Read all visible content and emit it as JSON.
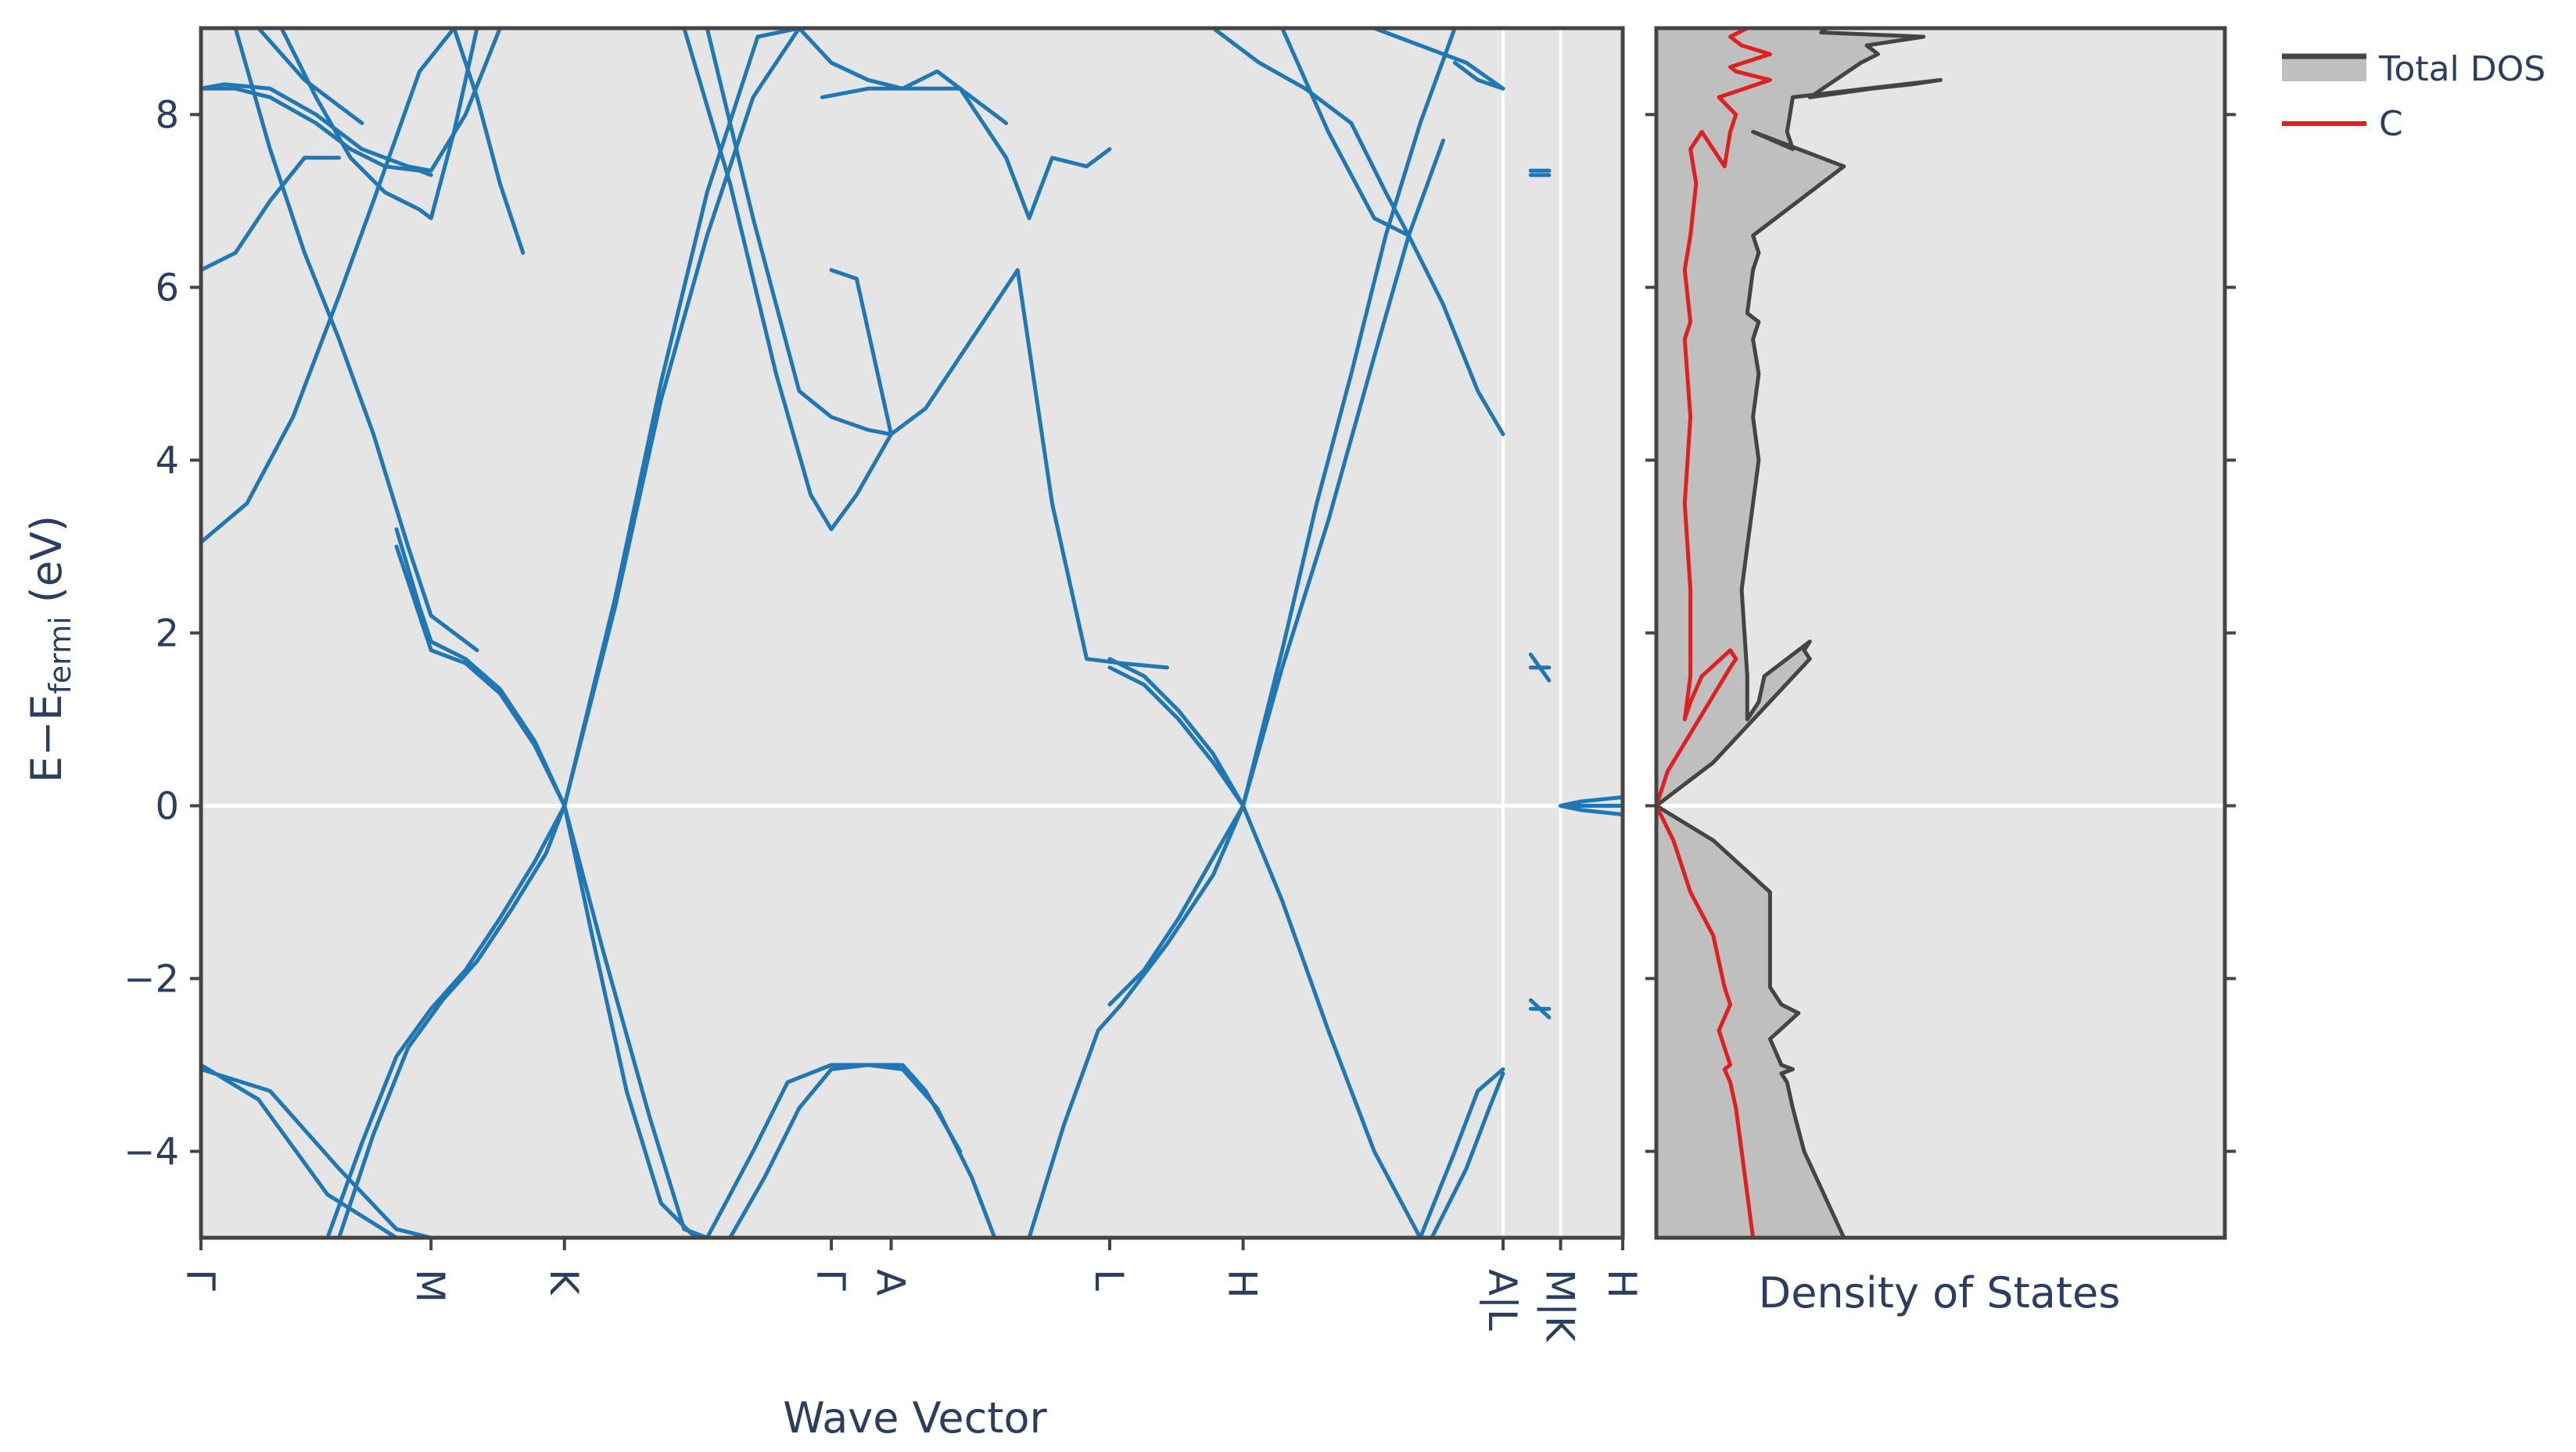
{
  "chart_data": [
    {
      "type": "line",
      "panel": "band-structure",
      "xlabel": "Wave Vector",
      "ylabel_main": "E−E",
      "ylabel_sub": "fermi",
      "ylabel_unit": " (eV)",
      "ylim": [
        -5,
        9
      ],
      "y_ticks": [
        8,
        6,
        4,
        2,
        0,
        -2,
        -4
      ],
      "y_tick_labels": [
        "8",
        "6",
        "4",
        "2",
        "0",
        "−2",
        "−4"
      ],
      "k_points": [
        "Γ",
        "M",
        "K",
        "Γ",
        "A",
        "L",
        "H",
        "A|L",
        "M|K",
        "H"
      ],
      "k_positions": [
        0,
        1,
        1.58,
        2.74,
        3.0,
        3.95,
        4.53,
        5.66,
        5.91,
        6.18
      ],
      "series_color": "#1f77b4",
      "bands": [
        {
          "x": [
            0,
            0.3,
            0.6,
            0.85,
            1.0,
            1.2,
            1.4,
            1.58
          ],
          "y": [
            -3.05,
            -3.3,
            -4.2,
            -4.9,
            -5.0,
            -5.0,
            -5.0,
            -5.0
          ]
        },
        {
          "x": [
            0,
            0.25,
            0.55,
            0.85,
            1.0,
            1.15,
            1.35,
            1.58
          ],
          "y": [
            -3.0,
            -3.4,
            -4.5,
            -5.0,
            -5.0,
            -5.0,
            -5.0,
            -5.0
          ]
        },
        {
          "x": [
            0.55,
            0.7,
            0.85,
            1.0,
            1.15,
            1.3,
            1.45,
            1.58
          ],
          "y": [
            -5.0,
            -3.9,
            -2.9,
            -2.35,
            -1.9,
            -1.3,
            -0.65,
            0.0
          ]
        },
        {
          "x": [
            0.6,
            0.75,
            0.9,
            1.05,
            1.2,
            1.35,
            1.5,
            1.58
          ],
          "y": [
            -5.0,
            -3.8,
            -2.8,
            -2.25,
            -1.8,
            -1.2,
            -0.55,
            0.0
          ]
        },
        {
          "x": [
            0.85,
            0.95,
            1.0,
            1.15,
            1.3,
            1.45,
            1.58
          ],
          "y": [
            3.0,
            2.2,
            1.8,
            1.65,
            1.3,
            0.7,
            0.0
          ]
        },
        {
          "x": [
            0.85,
            0.95,
            1.0,
            1.15,
            1.3,
            1.45,
            1.58
          ],
          "y": [
            3.2,
            2.3,
            1.9,
            1.7,
            1.35,
            0.75,
            0.0
          ]
        },
        {
          "x": [
            1.58,
            1.75,
            1.95,
            2.1,
            2.2
          ],
          "y": [
            0.0,
            -1.7,
            -3.6,
            -4.9,
            -5.0
          ]
        },
        {
          "x": [
            1.58,
            1.7,
            1.85,
            2.0,
            2.15
          ],
          "y": [
            0.0,
            -1.5,
            -3.3,
            -4.6,
            -5.0
          ]
        },
        {
          "x": [
            1.58,
            1.8,
            2.0,
            2.2,
            2.4,
            2.6,
            2.8,
            3.0
          ],
          "y": [
            0.0,
            2.3,
            4.7,
            6.6,
            8.2,
            9.0,
            9.0,
            9.0
          ]
        },
        {
          "x": [
            1.58,
            1.8,
            2.0,
            2.2,
            2.42,
            2.6
          ],
          "y": [
            0.0,
            2.4,
            4.9,
            7.1,
            8.9,
            9.0
          ]
        },
        {
          "x": [
            0,
            0.2,
            0.4,
            0.6,
            0.75,
            0.95,
            1.1
          ],
          "y": [
            3.05,
            3.5,
            4.5,
            5.9,
            7.0,
            8.5,
            9.0
          ]
        },
        {
          "x": [
            0,
            0.15,
            0.3,
            0.45,
            0.6
          ],
          "y": [
            6.2,
            6.4,
            7.0,
            7.5,
            7.5
          ]
        },
        {
          "x": [
            0.35,
            0.5,
            0.65,
            0.8,
            0.95,
            1.0,
            1.1,
            1.2
          ],
          "y": [
            9.0,
            8.2,
            7.5,
            7.1,
            6.9,
            6.8,
            7.8,
            9.0
          ]
        },
        {
          "x": [
            0,
            0.1,
            0.3,
            0.5,
            0.7,
            0.9,
            1.0,
            1.15,
            1.3
          ],
          "y": [
            8.3,
            8.35,
            8.3,
            8.0,
            7.6,
            7.4,
            7.35,
            8.0,
            9.0
          ]
        },
        {
          "x": [
            0,
            0.15,
            0.3,
            0.5,
            0.65,
            0.8,
            0.95,
            1.0
          ],
          "y": [
            8.3,
            8.3,
            8.2,
            7.9,
            7.6,
            7.4,
            7.35,
            7.3
          ]
        },
        {
          "x": [
            0.25,
            0.35,
            0.45,
            0.55,
            0.7
          ],
          "y": [
            9.0,
            8.7,
            8.4,
            8.2,
            7.9
          ]
        },
        {
          "x": [
            0.15,
            0.3,
            0.45,
            0.6,
            0.75,
            0.9,
            1.0,
            1.2
          ],
          "y": [
            9.0,
            7.6,
            6.4,
            5.4,
            4.3,
            3.0,
            2.2,
            1.8
          ]
        },
        {
          "x": [
            1.1,
            1.2,
            1.3,
            1.4
          ],
          "y": [
            9.0,
            8.2,
            7.2,
            6.4
          ]
        },
        {
          "x": [
            2.2,
            2.4,
            2.6,
            2.74,
            2.9,
            3.0
          ],
          "y": [
            9.0,
            6.8,
            4.8,
            4.5,
            4.35,
            4.3
          ]
        },
        {
          "x": [
            2.1,
            2.3,
            2.5,
            2.65,
            2.74,
            2.85,
            3.0
          ],
          "y": [
            9.0,
            7.2,
            5.0,
            3.6,
            3.2,
            3.6,
            4.3
          ]
        },
        {
          "x": [
            2.74,
            2.85,
            3.0,
            3.15,
            3.35,
            3.55,
            3.7,
            3.85,
            4.0,
            4.2
          ],
          "y": [
            6.2,
            6.1,
            4.3,
            4.6,
            5.4,
            6.2,
            3.5,
            1.7,
            1.65,
            1.6
          ]
        },
        {
          "x": [
            2.6,
            2.74,
            2.9,
            3.05,
            3.2,
            3.35,
            3.5
          ],
          "y": [
            9.0,
            8.6,
            8.4,
            8.3,
            8.5,
            8.2,
            7.9
          ]
        },
        {
          "x": [
            2.7,
            2.9,
            3.1,
            3.3,
            3.5,
            3.6,
            3.7,
            3.85,
            3.95
          ],
          "y": [
            8.2,
            8.3,
            8.3,
            8.3,
            7.5,
            6.8,
            7.5,
            7.4,
            7.6
          ]
        },
        {
          "x": [
            3.95,
            4.1,
            4.25,
            4.4,
            4.53
          ],
          "y": [
            1.6,
            1.4,
            1.0,
            0.5,
            0.0
          ]
        },
        {
          "x": [
            3.95,
            4.1,
            4.25,
            4.4,
            4.53
          ],
          "y": [
            1.7,
            1.5,
            1.1,
            0.6,
            0.0
          ]
        },
        {
          "x": [
            3.95,
            4.1,
            4.25,
            4.4,
            4.53
          ],
          "y": [
            -2.3,
            -1.9,
            -1.3,
            -0.6,
            0.0
          ]
        },
        {
          "x": [
            3.6,
            3.75,
            3.9,
            4.0,
            4.2,
            4.4,
            4.53
          ],
          "y": [
            -5.0,
            -3.7,
            -2.6,
            -2.3,
            -1.6,
            -0.8,
            0.0
          ]
        },
        {
          "x": [
            4.53,
            4.7,
            4.9,
            5.1,
            5.3,
            5.5,
            5.66
          ],
          "y": [
            0.0,
            -1.1,
            -2.6,
            -4.0,
            -5.0,
            -5.0,
            -5.0
          ]
        },
        {
          "x": [
            4.53,
            4.7,
            4.9,
            5.1,
            5.25,
            5.4
          ],
          "y": [
            0.0,
            1.6,
            3.3,
            5.2,
            6.6,
            7.7
          ]
        },
        {
          "x": [
            4.53,
            4.7,
            4.85,
            5.0,
            5.15,
            5.3,
            5.45
          ],
          "y": [
            0.0,
            1.8,
            3.5,
            5.0,
            6.6,
            7.9,
            9.0
          ]
        },
        {
          "x": [
            4.7,
            4.9,
            5.1,
            5.25,
            5.4,
            5.55,
            5.66
          ],
          "y": [
            9.0,
            7.8,
            6.8,
            6.6,
            5.8,
            4.8,
            4.3
          ]
        },
        {
          "x": [
            4.4,
            4.6,
            4.8,
            5.0,
            5.15,
            5.25
          ],
          "y": [
            9.0,
            8.6,
            8.3,
            7.9,
            7.1,
            6.6
          ]
        },
        {
          "x": [
            5.1,
            5.3,
            5.5,
            5.66
          ],
          "y": [
            9.0,
            8.8,
            8.6,
            8.3
          ]
        },
        {
          "x": [
            5.45,
            5.55,
            5.66
          ],
          "y": [
            8.6,
            8.4,
            8.3
          ]
        },
        {
          "x": [
            5.3,
            5.45,
            5.55,
            5.66
          ],
          "y": [
            -5.0,
            -4.0,
            -3.3,
            -3.05
          ]
        },
        {
          "x": [
            5.35,
            5.5,
            5.6,
            5.66
          ],
          "y": [
            -5.0,
            -4.2,
            -3.5,
            -3.1
          ]
        },
        {
          "x": [
            2.2,
            2.4,
            2.55,
            2.74,
            2.9,
            3.05,
            3.15,
            3.3
          ],
          "y": [
            -5.0,
            -4.0,
            -3.2,
            -3.0,
            -3.0,
            -3.0,
            -3.3,
            -4.0
          ]
        },
        {
          "x": [
            2.3,
            2.45,
            2.6,
            2.74,
            2.9,
            3.05,
            3.2,
            3.35,
            3.45
          ],
          "y": [
            -5.0,
            -4.3,
            -3.5,
            -3.05,
            -3.0,
            -3.05,
            -3.5,
            -4.3,
            -5.0
          ]
        },
        {
          "x": [
            5.78,
            5.82,
            5.86
          ],
          "y": [
            7.35,
            7.35,
            7.35
          ]
        },
        {
          "x": [
            5.78,
            5.82,
            5.86
          ],
          "y": [
            7.3,
            7.3,
            7.3
          ]
        },
        {
          "x": [
            5.78,
            5.82,
            5.86
          ],
          "y": [
            1.75,
            1.6,
            1.45
          ]
        },
        {
          "x": [
            5.78,
            5.82,
            5.86
          ],
          "y": [
            1.6,
            1.6,
            1.6
          ]
        },
        {
          "x": [
            5.78,
            5.82,
            5.86
          ],
          "y": [
            -2.25,
            -2.35,
            -2.45
          ]
        },
        {
          "x": [
            5.78,
            5.82,
            5.86
          ],
          "y": [
            -2.35,
            -2.35,
            -2.35
          ]
        },
        {
          "x": [
            5.91,
            6.0,
            6.18
          ],
          "y": [
            0.0,
            0.05,
            0.1
          ]
        },
        {
          "x": [
            5.91,
            6.0,
            6.18
          ],
          "y": [
            0.0,
            0.0,
            0.0
          ]
        },
        {
          "x": [
            5.91,
            6.0,
            6.18
          ],
          "y": [
            0.0,
            -0.05,
            -0.1
          ]
        }
      ]
    },
    {
      "type": "area",
      "panel": "dos",
      "xlabel": "Density of States",
      "ylim": [
        -5,
        9
      ],
      "xlim": [
        0,
        1
      ],
      "series": [
        {
          "name": "Total DOS",
          "color": "#444444",
          "fill": "#bfbfbf",
          "x": [
            0.33,
            0.26,
            0.24,
            0.23,
            0.22,
            0.24,
            0.22,
            0.2,
            0.25,
            0.22,
            0.2,
            0.2,
            0.2,
            0.1,
            0.0,
            0.1,
            0.27,
            0.26,
            0.27,
            0.19,
            0.18,
            0.16,
            0.16,
            0.15,
            0.16,
            0.17,
            0.18,
            0.17,
            0.18,
            0.17,
            0.18,
            0.16,
            0.17,
            0.18,
            0.17,
            0.33,
            0.17,
            0.24,
            0.23,
            0.24,
            0.5,
            0.45,
            0.38,
            0.27,
            0.36,
            0.39,
            0.37,
            0.47,
            0.29,
            0.3
          ],
          "y": [
            -5.0,
            -4.0,
            -3.5,
            -3.2,
            -3.1,
            -3.05,
            -3.0,
            -2.7,
            -2.4,
            -2.3,
            -2.1,
            -1.5,
            -1.0,
            -0.4,
            0.0,
            0.5,
            1.7,
            1.8,
            1.9,
            1.5,
            1.2,
            1.0,
            1.5,
            2.5,
            3.0,
            3.5,
            4.0,
            4.5,
            5.0,
            5.4,
            5.6,
            5.7,
            6.2,
            6.4,
            6.6,
            7.4,
            7.8,
            7.6,
            7.8,
            8.2,
            8.4,
            8.35,
            8.3,
            8.2,
            8.6,
            8.7,
            8.8,
            8.9,
            8.95,
            9.0
          ]
        },
        {
          "name": "C",
          "color": "#e02020",
          "x": [
            0.17,
            0.15,
            0.14,
            0.13,
            0.12,
            0.13,
            0.12,
            0.11,
            0.13,
            0.12,
            0.1,
            0.06,
            0.03,
            0.0,
            0.02,
            0.13,
            0.14,
            0.13,
            0.08,
            0.06,
            0.05,
            0.06,
            0.06,
            0.05,
            0.06,
            0.05,
            0.06,
            0.05,
            0.06,
            0.07,
            0.06,
            0.08,
            0.12,
            0.13,
            0.14,
            0.11,
            0.2,
            0.14,
            0.13,
            0.2,
            0.15,
            0.13,
            0.16
          ],
          "y": [
            -5.0,
            -4.0,
            -3.5,
            -3.2,
            -3.05,
            -3.0,
            -2.8,
            -2.6,
            -2.3,
            -2.1,
            -1.5,
            -1.0,
            -0.4,
            0.0,
            0.4,
            1.6,
            1.7,
            1.8,
            1.5,
            1.2,
            1.0,
            1.5,
            2.5,
            3.5,
            4.5,
            5.4,
            5.6,
            6.2,
            6.6,
            7.2,
            7.6,
            7.8,
            7.4,
            7.8,
            8.0,
            8.2,
            8.4,
            8.5,
            8.55,
            8.7,
            8.8,
            8.9,
            9.0
          ]
        }
      ]
    }
  ],
  "legend": {
    "items": [
      {
        "label": "Total DOS",
        "line_color": "#444444",
        "fill_color": "#bfbfbf"
      },
      {
        "label": "C",
        "line_color": "#e02020"
      }
    ]
  },
  "colors": {
    "plot_bg": "#e5e5e5",
    "frame": "#444444",
    "zero_line": "#ffffff",
    "band": "#1f77b4",
    "text": "#2a3f5f"
  }
}
